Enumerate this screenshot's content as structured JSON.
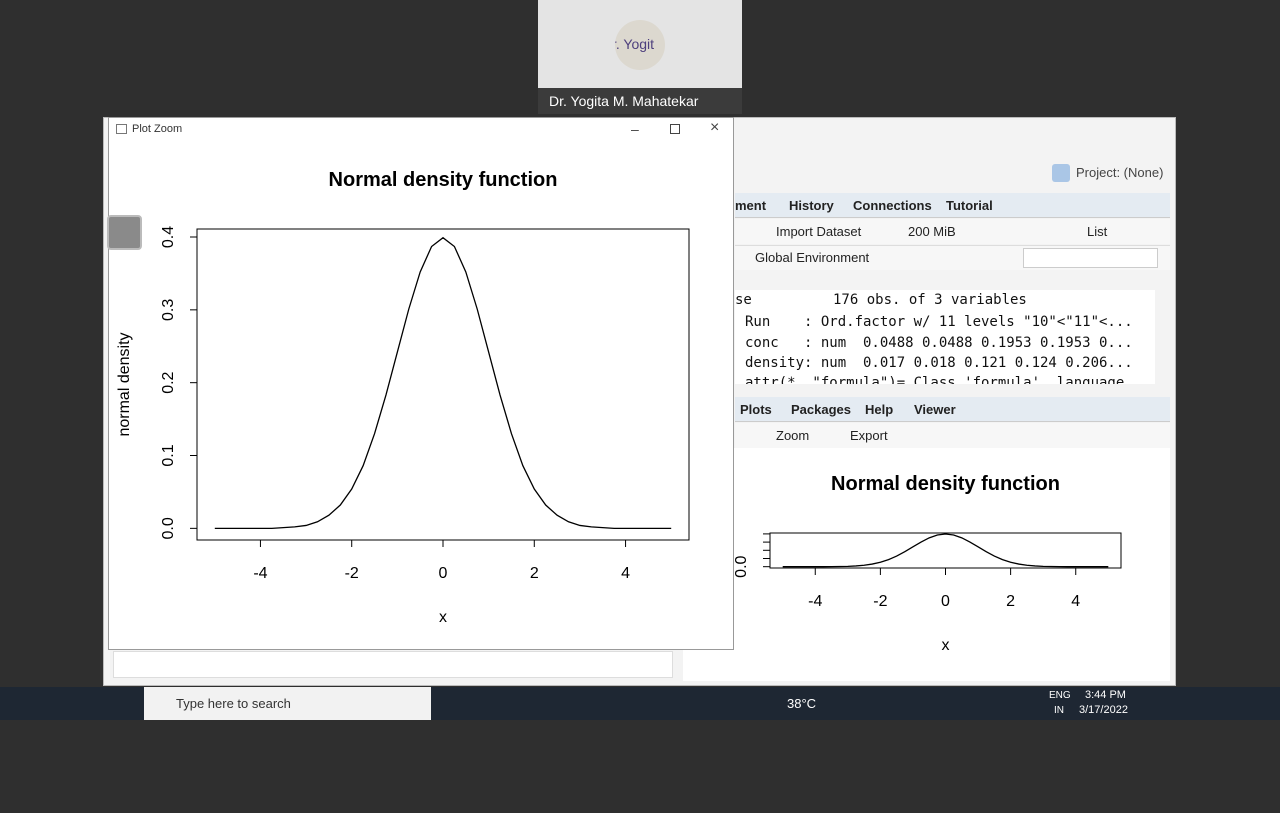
{
  "meeting": {
    "avatar_text": "r. Yogit",
    "participant": "Dr. Yogita M. Mahatekar"
  },
  "zoom_window": {
    "title": "Plot Zoom"
  },
  "rstudio": {
    "project": "Project: (None)",
    "env_tabs": [
      "ment",
      "History",
      "Connections",
      "Tutorial"
    ],
    "env_toolbar": {
      "import": "Import Dataset",
      "memory": "200 MiB",
      "view": "List"
    },
    "env_scope": "Global Environment",
    "env_rows": [
      {
        "name": "se",
        "value": "176 obs. of 3 variables"
      },
      {
        "name": "Run    : Ord.factor w/ 11 levels \"10\"<\"11\"<..."
      },
      {
        "name": "conc   : num  0.0488 0.0488 0.1953 0.1953 0..."
      },
      {
        "name": "density: num  0.017 0.018 0.121 0.124 0.206..."
      },
      {
        "name": "attr(*, \"formula\")= Class 'formula'  language"
      }
    ],
    "plot_tabs": [
      "Plots",
      "Packages",
      "Help",
      "Viewer"
    ],
    "plot_toolbar": {
      "zoom": "Zoom",
      "export": "Export"
    }
  },
  "taskbar": {
    "search": "Type here to search",
    "weather": "38°C",
    "lang": "ENG",
    "region": "IN",
    "time": "3:44 PM",
    "date": "3/17/2022"
  },
  "chart_data": {
    "type": "line",
    "title": "Normal density function",
    "x_label": "x",
    "y_label": "normal density",
    "x": [
      -5,
      -4.75,
      -4.5,
      -4.25,
      -4,
      -3.75,
      -3.5,
      -3.25,
      -3,
      -2.75,
      -2.5,
      -2.25,
      -2,
      -1.75,
      -1.5,
      -1.25,
      -1,
      -0.75,
      -0.5,
      -0.25,
      0,
      0.25,
      0.5,
      0.75,
      1,
      1.25,
      1.5,
      1.75,
      2,
      2.25,
      2.5,
      2.75,
      3,
      3.25,
      3.5,
      3.75,
      4,
      4.25,
      4.5,
      4.75,
      5
    ],
    "values": [
      0,
      0,
      0,
      0,
      0,
      0,
      0.001,
      0.002,
      0.004,
      0.009,
      0.018,
      0.032,
      0.054,
      0.086,
      0.13,
      0.183,
      0.242,
      0.301,
      0.352,
      0.387,
      0.399,
      0.387,
      0.352,
      0.301,
      0.242,
      0.183,
      0.13,
      0.086,
      0.054,
      0.032,
      0.018,
      0.009,
      0.004,
      0.002,
      0.001,
      0,
      0,
      0,
      0,
      0,
      0
    ],
    "color": "#000000",
    "xlim": [
      -5.39,
      5.39
    ],
    "ylim": [
      -0.016,
      0.411
    ],
    "xticks": [
      -4,
      -2,
      0,
      2,
      4
    ],
    "yticks": [
      {
        "value": 0,
        "label": "0.0"
      },
      0.1,
      0.2,
      0.3,
      0.4
    ]
  }
}
